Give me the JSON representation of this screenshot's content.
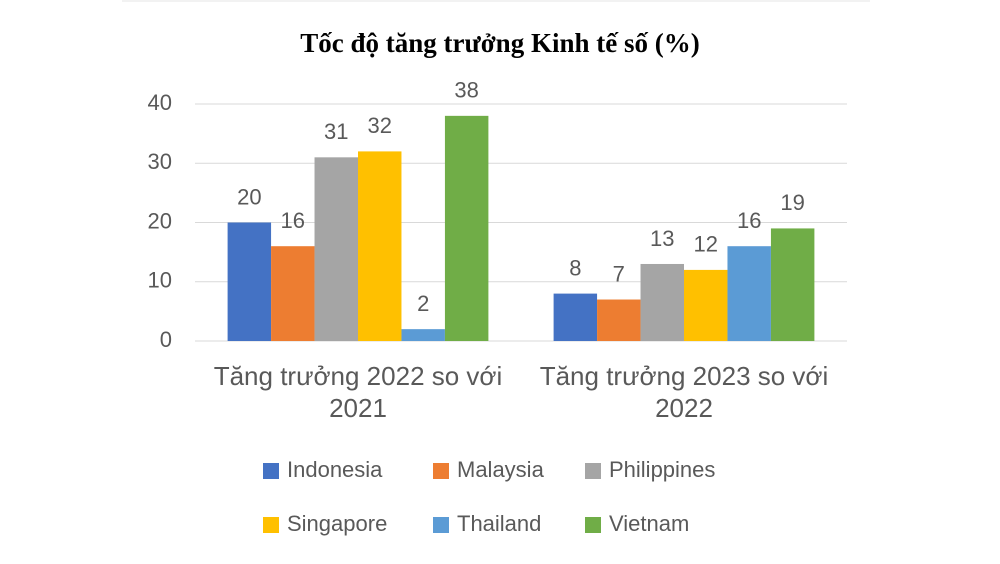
{
  "chart_data": {
    "type": "bar",
    "title": "Tốc độ tăng trưởng Kinh tế số (%)",
    "categories": [
      "Tăng trưởng 2022 so với 2021",
      "Tăng trưởng 2023 so với 2022"
    ],
    "series": [
      {
        "name": "Indonesia",
        "color": "#4472c4",
        "values": [
          20,
          8
        ]
      },
      {
        "name": "Malaysia",
        "color": "#ed7d31",
        "values": [
          16,
          7
        ]
      },
      {
        "name": "Philippines",
        "color": "#a5a5a5",
        "values": [
          31,
          13
        ]
      },
      {
        "name": "Singapore",
        "color": "#ffc000",
        "values": [
          32,
          12
        ]
      },
      {
        "name": "Thailand",
        "color": "#5b9bd5",
        "values": [
          2,
          16
        ]
      },
      {
        "name": "Vietnam",
        "color": "#70ad47",
        "values": [
          38,
          19
        ]
      }
    ],
    "ylim": [
      0,
      40
    ],
    "yticks": [
      0,
      10,
      20,
      30,
      40
    ],
    "grid": true,
    "legend": "bottom"
  }
}
